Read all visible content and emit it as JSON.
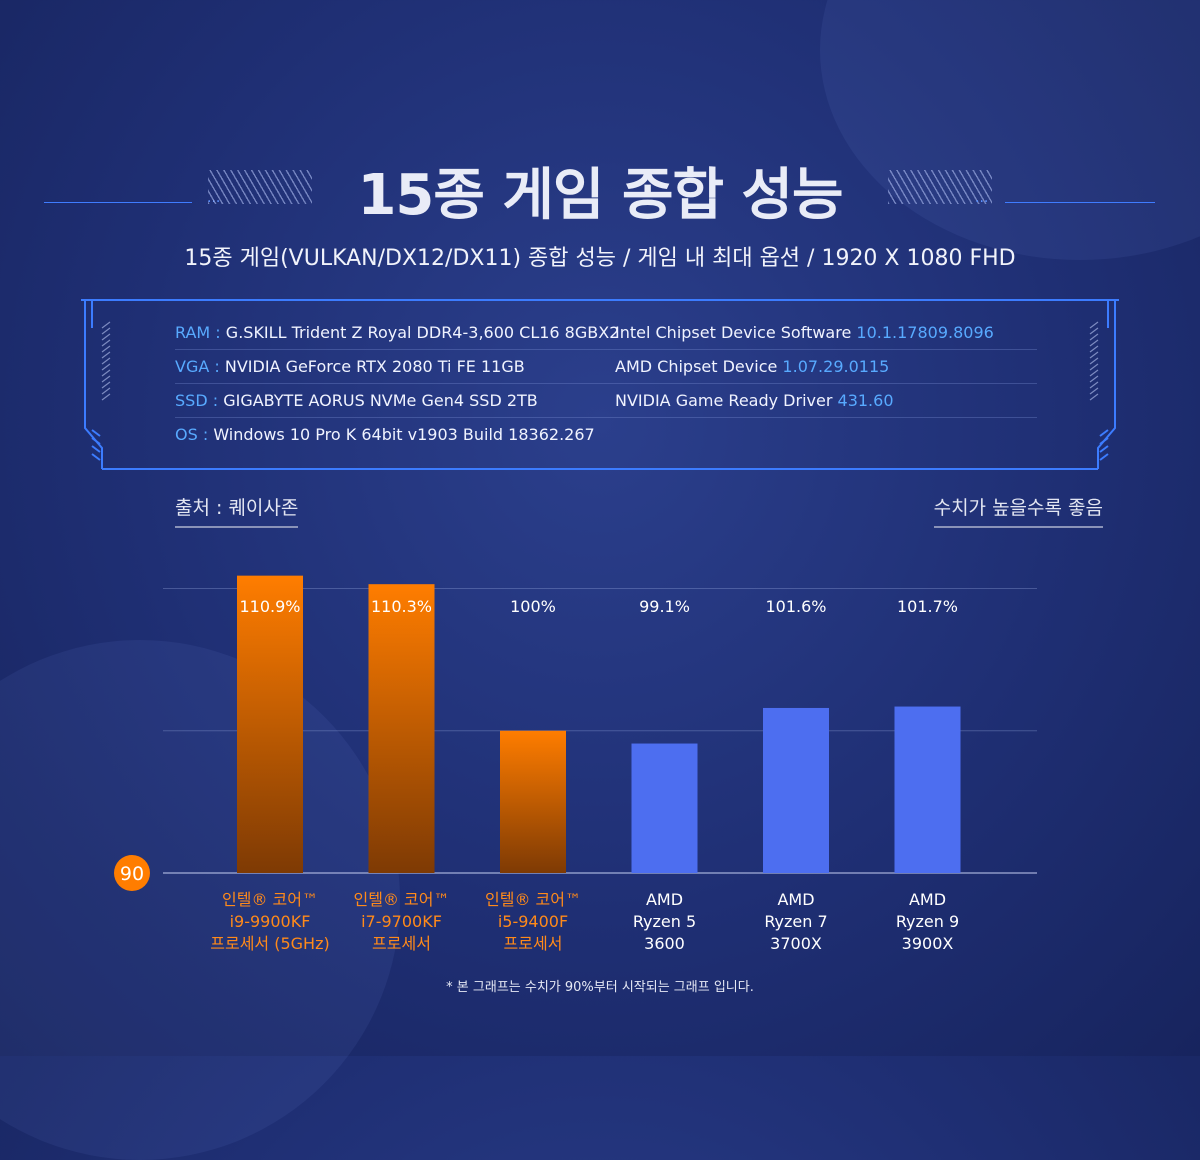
{
  "title": "15종 게임 종합 성능",
  "subtitle": "15종 게임(VULKAN/DX12/DX11) 종합 성능 / 게임 내 최대 옵션 / 1920 X 1080 FHD",
  "title_dots": "...",
  "specs": {
    "left": [
      {
        "key": "RAM :",
        "value": "G.SKILL Trident Z Royal DDR4-3,600 CL16 8GBX2"
      },
      {
        "key": "VGA :",
        "value": "NVIDIA GeForce RTX 2080 Ti FE 11GB"
      },
      {
        "key": "SSD :",
        "value": "GIGABYTE AORUS NVMe Gen4 SSD 2TB"
      },
      {
        "key": "OS :",
        "value": "Windows 10 Pro K 64bit v1903 Build 18362.267"
      }
    ],
    "right": [
      {
        "label": "Intel Chipset Device Software",
        "version": "10.1.17809.8096"
      },
      {
        "label": "AMD Chipset Device",
        "version": "1.07.29.0115"
      },
      {
        "label": "NVIDIA Game Ready Driver",
        "version": "431.60"
      }
    ]
  },
  "source": "출처 : 퀘이사존",
  "higher_is_better": "수치가 높을수록 좋음",
  "footnote": "* 본 그래프는 수치가 90%부터 시작되는 그래프 입니다.",
  "colors": {
    "intel_top": "#ff7d00",
    "intel_bottom": "#7e3a04",
    "amd": "#4d6ef0",
    "baseline_badge": "#ff7d00",
    "intel_label": "#ff8a1a",
    "amd_label": "#ffffff",
    "spec_highlight": "#58aaff"
  },
  "chart_data": {
    "type": "bar",
    "title": "15종 게임 종합 성능",
    "ylim": [
      90,
      112
    ],
    "baseline_label": "90",
    "categories": [
      {
        "lines": [
          "인텔® 코어™",
          "i9-9900KF",
          "프로세서 (5GHz)"
        ],
        "brand": "intel"
      },
      {
        "lines": [
          "인텔® 코어™",
          "i7-9700KF",
          "프로세서"
        ],
        "brand": "intel"
      },
      {
        "lines": [
          "인텔® 코어™",
          "i5-9400F",
          "프로세서"
        ],
        "brand": "intel"
      },
      {
        "lines": [
          "AMD",
          "Ryzen 5",
          "3600"
        ],
        "brand": "amd"
      },
      {
        "lines": [
          "AMD",
          "Ryzen 7",
          "3700X"
        ],
        "brand": "amd"
      },
      {
        "lines": [
          "AMD",
          "Ryzen 9",
          "3900X"
        ],
        "brand": "amd"
      }
    ],
    "values": [
      110.9,
      110.3,
      100,
      99.1,
      101.6,
      101.7
    ],
    "value_labels": [
      "110.9%",
      "110.3%",
      "100%",
      "99.1%",
      "101.6%",
      "101.7%"
    ],
    "grid": true
  }
}
